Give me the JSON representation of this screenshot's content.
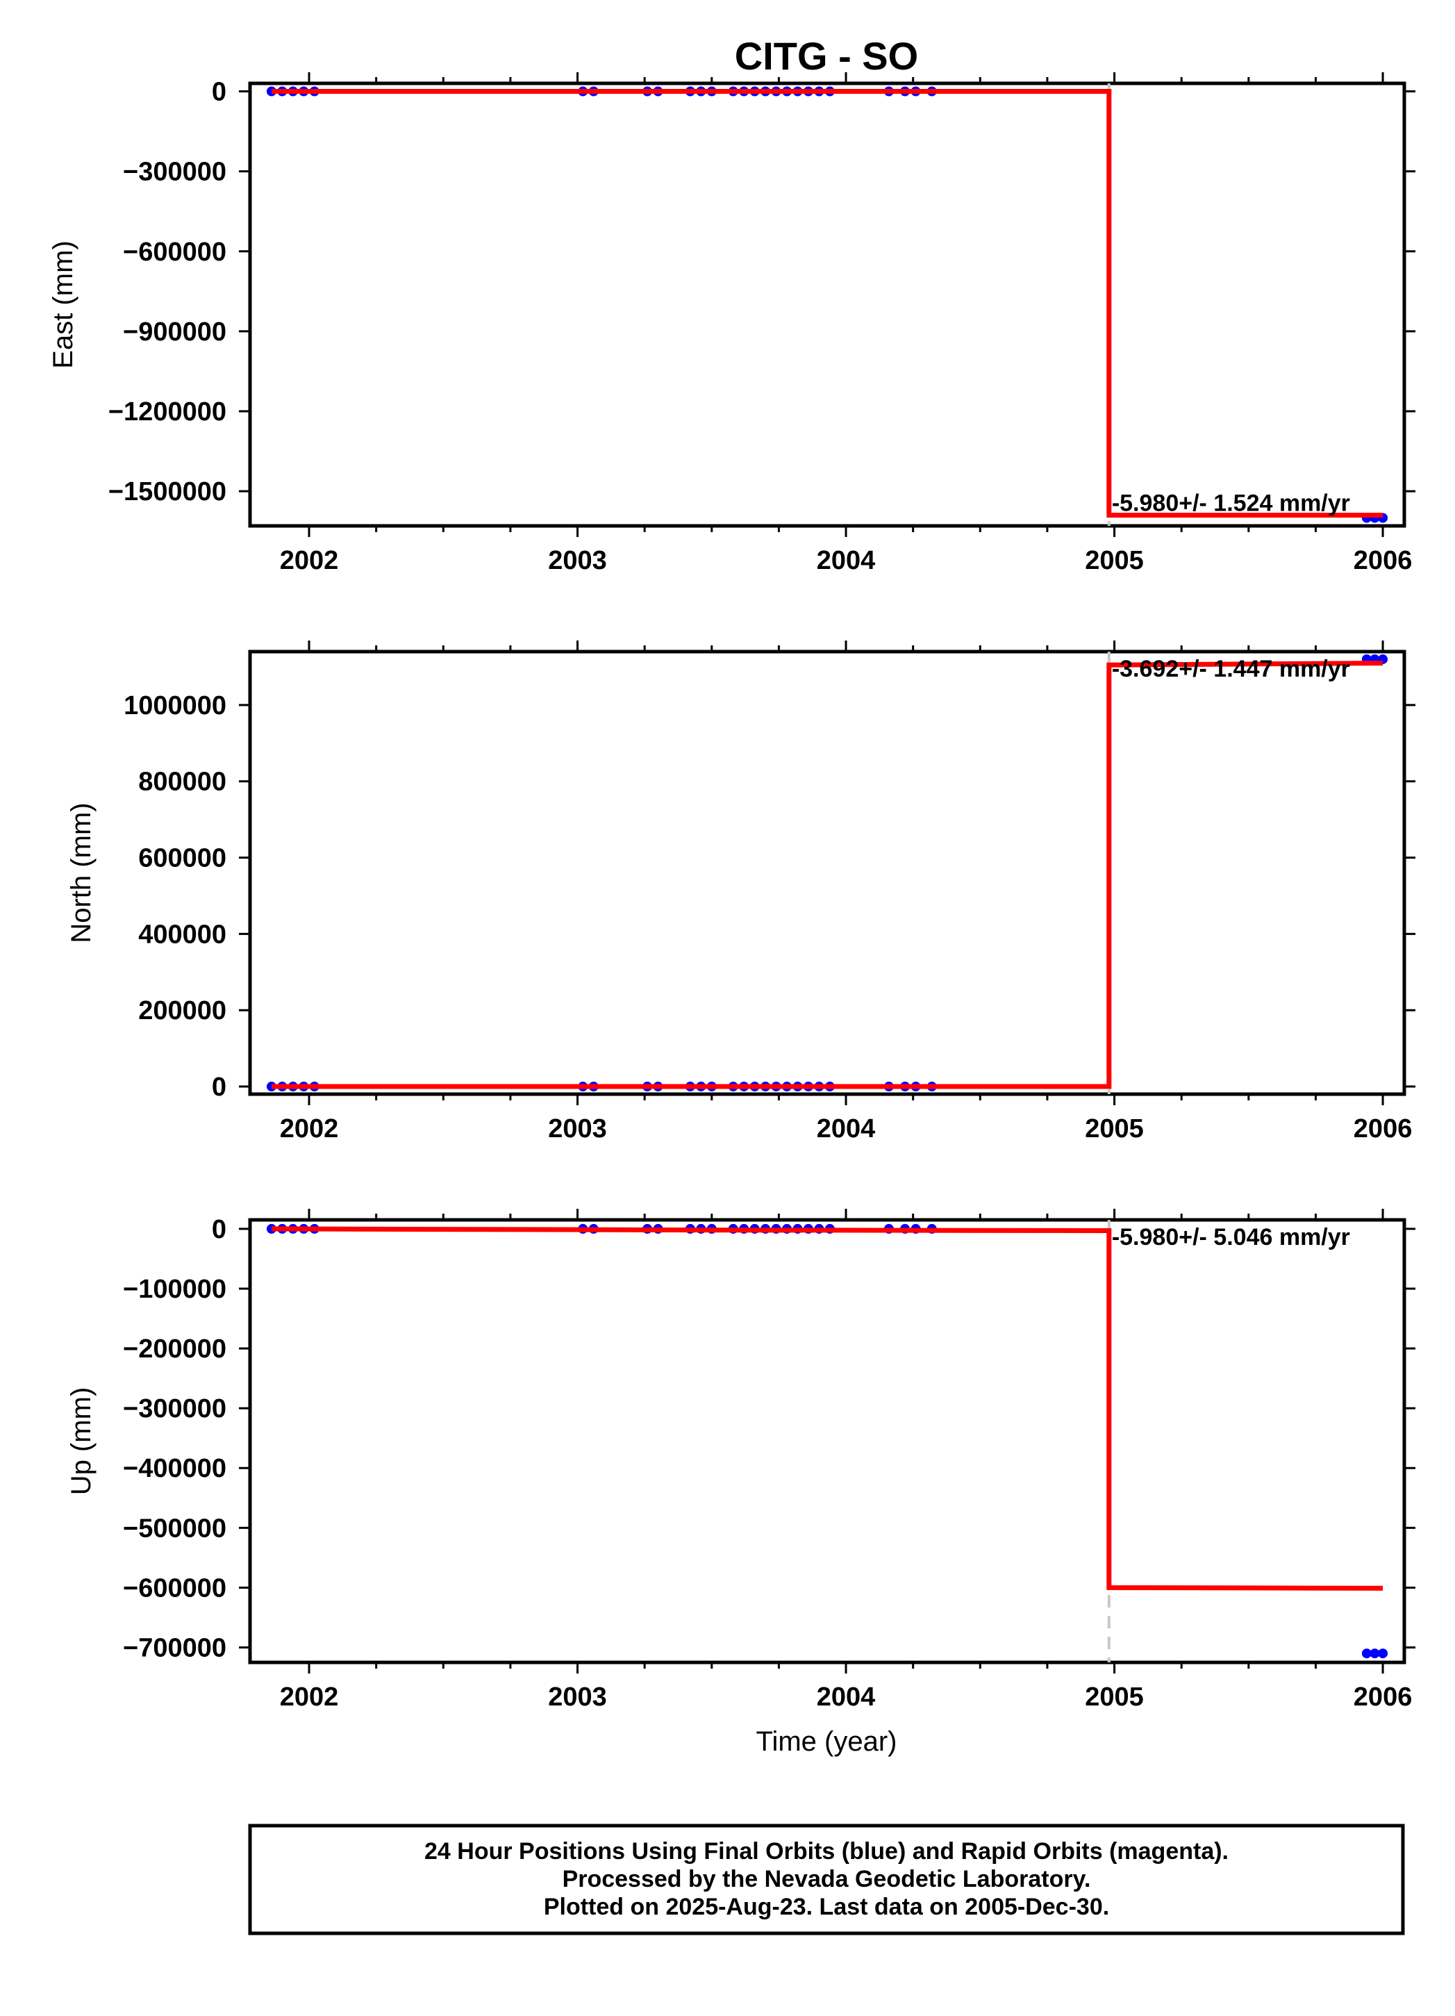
{
  "title": "CITG - SO",
  "xlabel": "Time (year)",
  "footer": [
    "24 Hour Positions Using Final Orbits (blue) and Rapid Orbits (magenta).",
    "Processed by the Nevada Geodetic Laboratory.",
    "Plotted on 2025-Aug-23. Last data on 2005-Dec-30."
  ],
  "colors": {
    "final": "#0000ff",
    "rapid": "#ff00ff",
    "model": "#ff0000",
    "break_line": "#c8c8c8"
  },
  "chart_data": [
    {
      "type": "scatter",
      "ylabel": "East (mm)",
      "xlim": [
        2001.78,
        2006.08
      ],
      "ylim": [
        -1630000,
        30000
      ],
      "xticks": [
        2002,
        2003,
        2004,
        2005,
        2006
      ],
      "yticks": [
        0,
        -300000,
        -600000,
        -900000,
        -1200000,
        -1500000
      ],
      "rate_label": "-5.980+/- 1.524 mm/yr",
      "break_year": 2004.98,
      "observations": {
        "x": [
          2001.86,
          2001.9,
          2001.94,
          2001.98,
          2002.02,
          2003.02,
          2003.06,
          2003.26,
          2003.3,
          2003.42,
          2003.46,
          2003.5,
          2003.58,
          2003.62,
          2003.66,
          2003.7,
          2003.74,
          2003.78,
          2003.82,
          2003.86,
          2003.9,
          2003.94,
          2004.16,
          2004.22,
          2004.26,
          2004.32,
          2005.94,
          2005.97,
          2006.0
        ],
        "y": [
          0,
          0,
          0,
          0,
          0,
          0,
          0,
          0,
          0,
          0,
          0,
          0,
          0,
          0,
          0,
          0,
          0,
          0,
          0,
          0,
          0,
          0,
          0,
          0,
          0,
          0,
          -1600000,
          -1600000,
          -1600000
        ]
      },
      "model": {
        "x": [
          2001.86,
          2004.98,
          2004.98,
          2006.0
        ],
        "y": [
          0,
          0,
          -1590000,
          -1590000
        ]
      }
    },
    {
      "type": "scatter",
      "ylabel": "North (mm)",
      "xlim": [
        2001.78,
        2006.08
      ],
      "ylim": [
        -20000,
        1140000
      ],
      "xticks": [
        2002,
        2003,
        2004,
        2005,
        2006
      ],
      "yticks": [
        0,
        200000,
        400000,
        600000,
        800000,
        1000000
      ],
      "rate_label": "-3.692+/- 1.447 mm/yr",
      "break_year": 2004.98,
      "observations": {
        "x": [
          2001.86,
          2001.9,
          2001.94,
          2001.98,
          2002.02,
          2003.02,
          2003.06,
          2003.26,
          2003.3,
          2003.42,
          2003.46,
          2003.5,
          2003.58,
          2003.62,
          2003.66,
          2003.7,
          2003.74,
          2003.78,
          2003.82,
          2003.86,
          2003.9,
          2003.94,
          2004.16,
          2004.22,
          2004.26,
          2004.32,
          2005.94,
          2005.97,
          2006.0
        ],
        "y": [
          0,
          0,
          0,
          0,
          0,
          0,
          0,
          0,
          0,
          0,
          0,
          0,
          0,
          0,
          0,
          0,
          0,
          0,
          0,
          0,
          0,
          0,
          0,
          0,
          0,
          0,
          1120000,
          1120000,
          1120000
        ]
      },
      "model": {
        "x": [
          2001.86,
          2004.98,
          2004.98,
          2006.0
        ],
        "y": [
          0,
          0,
          1105000,
          1110000
        ]
      }
    },
    {
      "type": "scatter",
      "ylabel": "Up (mm)",
      "xlim": [
        2001.78,
        2006.08
      ],
      "ylim": [
        -725000,
        15000
      ],
      "xticks": [
        2002,
        2003,
        2004,
        2005,
        2006
      ],
      "yticks": [
        0,
        -100000,
        -200000,
        -300000,
        -400000,
        -500000,
        -600000,
        -700000
      ],
      "rate_label": "-5.980+/- 5.046 mm/yr",
      "break_year": 2004.98,
      "observations": {
        "x": [
          2001.86,
          2001.9,
          2001.94,
          2001.98,
          2002.02,
          2003.02,
          2003.06,
          2003.26,
          2003.3,
          2003.42,
          2003.46,
          2003.5,
          2003.58,
          2003.62,
          2003.66,
          2003.7,
          2003.74,
          2003.78,
          2003.82,
          2003.86,
          2003.9,
          2003.94,
          2004.16,
          2004.22,
          2004.26,
          2004.32,
          2005.94,
          2005.97,
          2006.0
        ],
        "y": [
          0,
          0,
          0,
          0,
          0,
          0,
          0,
          0,
          0,
          0,
          0,
          0,
          0,
          0,
          0,
          0,
          0,
          0,
          0,
          0,
          0,
          0,
          0,
          0,
          0,
          0,
          -710000,
          -710000,
          -710000
        ]
      },
      "model": {
        "x": [
          2001.86,
          2003.5,
          2004.98,
          2004.98,
          2006.0
        ],
        "y": [
          0,
          -2000,
          -3000,
          -600000,
          -601000
        ]
      }
    }
  ]
}
